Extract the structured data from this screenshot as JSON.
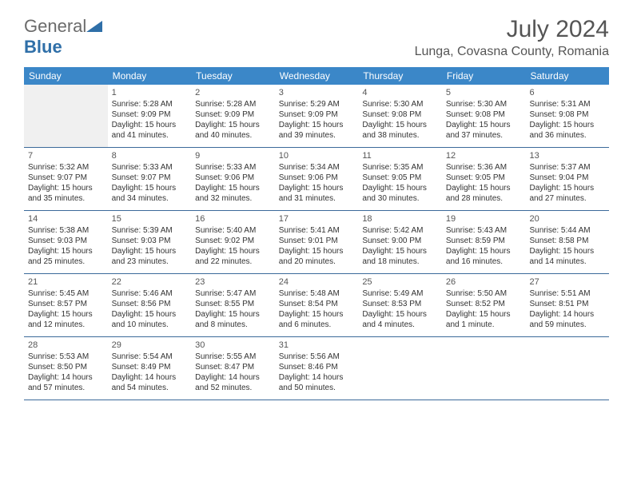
{
  "brand": {
    "name1": "General",
    "name2": "Blue"
  },
  "title": "July 2024",
  "location": "Lunga, Covasna County, Romania",
  "header_bg": "#3b87c8",
  "header_text_color": "#ffffff",
  "border_color": "#3b6a9a",
  "day_headers": [
    "Sunday",
    "Monday",
    "Tuesday",
    "Wednesday",
    "Thursday",
    "Friday",
    "Saturday"
  ],
  "weeks": [
    [
      {
        "n": "",
        "lead": true
      },
      {
        "n": "1",
        "sr": "5:28 AM",
        "ss": "9:09 PM",
        "dl": "15 hours and 41 minutes."
      },
      {
        "n": "2",
        "sr": "5:28 AM",
        "ss": "9:09 PM",
        "dl": "15 hours and 40 minutes."
      },
      {
        "n": "3",
        "sr": "5:29 AM",
        "ss": "9:09 PM",
        "dl": "15 hours and 39 minutes."
      },
      {
        "n": "4",
        "sr": "5:30 AM",
        "ss": "9:08 PM",
        "dl": "15 hours and 38 minutes."
      },
      {
        "n": "5",
        "sr": "5:30 AM",
        "ss": "9:08 PM",
        "dl": "15 hours and 37 minutes."
      },
      {
        "n": "6",
        "sr": "5:31 AM",
        "ss": "9:08 PM",
        "dl": "15 hours and 36 minutes."
      }
    ],
    [
      {
        "n": "7",
        "sr": "5:32 AM",
        "ss": "9:07 PM",
        "dl": "15 hours and 35 minutes."
      },
      {
        "n": "8",
        "sr": "5:33 AM",
        "ss": "9:07 PM",
        "dl": "15 hours and 34 minutes."
      },
      {
        "n": "9",
        "sr": "5:33 AM",
        "ss": "9:06 PM",
        "dl": "15 hours and 32 minutes."
      },
      {
        "n": "10",
        "sr": "5:34 AM",
        "ss": "9:06 PM",
        "dl": "15 hours and 31 minutes."
      },
      {
        "n": "11",
        "sr": "5:35 AM",
        "ss": "9:05 PM",
        "dl": "15 hours and 30 minutes."
      },
      {
        "n": "12",
        "sr": "5:36 AM",
        "ss": "9:05 PM",
        "dl": "15 hours and 28 minutes."
      },
      {
        "n": "13",
        "sr": "5:37 AM",
        "ss": "9:04 PM",
        "dl": "15 hours and 27 minutes."
      }
    ],
    [
      {
        "n": "14",
        "sr": "5:38 AM",
        "ss": "9:03 PM",
        "dl": "15 hours and 25 minutes."
      },
      {
        "n": "15",
        "sr": "5:39 AM",
        "ss": "9:03 PM",
        "dl": "15 hours and 23 minutes."
      },
      {
        "n": "16",
        "sr": "5:40 AM",
        "ss": "9:02 PM",
        "dl": "15 hours and 22 minutes."
      },
      {
        "n": "17",
        "sr": "5:41 AM",
        "ss": "9:01 PM",
        "dl": "15 hours and 20 minutes."
      },
      {
        "n": "18",
        "sr": "5:42 AM",
        "ss": "9:00 PM",
        "dl": "15 hours and 18 minutes."
      },
      {
        "n": "19",
        "sr": "5:43 AM",
        "ss": "8:59 PM",
        "dl": "15 hours and 16 minutes."
      },
      {
        "n": "20",
        "sr": "5:44 AM",
        "ss": "8:58 PM",
        "dl": "15 hours and 14 minutes."
      }
    ],
    [
      {
        "n": "21",
        "sr": "5:45 AM",
        "ss": "8:57 PM",
        "dl": "15 hours and 12 minutes."
      },
      {
        "n": "22",
        "sr": "5:46 AM",
        "ss": "8:56 PM",
        "dl": "15 hours and 10 minutes."
      },
      {
        "n": "23",
        "sr": "5:47 AM",
        "ss": "8:55 PM",
        "dl": "15 hours and 8 minutes."
      },
      {
        "n": "24",
        "sr": "5:48 AM",
        "ss": "8:54 PM",
        "dl": "15 hours and 6 minutes."
      },
      {
        "n": "25",
        "sr": "5:49 AM",
        "ss": "8:53 PM",
        "dl": "15 hours and 4 minutes."
      },
      {
        "n": "26",
        "sr": "5:50 AM",
        "ss": "8:52 PM",
        "dl": "15 hours and 1 minute."
      },
      {
        "n": "27",
        "sr": "5:51 AM",
        "ss": "8:51 PM",
        "dl": "14 hours and 59 minutes."
      }
    ],
    [
      {
        "n": "28",
        "sr": "5:53 AM",
        "ss": "8:50 PM",
        "dl": "14 hours and 57 minutes."
      },
      {
        "n": "29",
        "sr": "5:54 AM",
        "ss": "8:49 PM",
        "dl": "14 hours and 54 minutes."
      },
      {
        "n": "30",
        "sr": "5:55 AM",
        "ss": "8:47 PM",
        "dl": "14 hours and 52 minutes."
      },
      {
        "n": "31",
        "sr": "5:56 AM",
        "ss": "8:46 PM",
        "dl": "14 hours and 50 minutes."
      },
      {
        "n": ""
      },
      {
        "n": ""
      },
      {
        "n": ""
      }
    ]
  ],
  "labels": {
    "sunrise": "Sunrise: ",
    "sunset": "Sunset: ",
    "daylight": "Daylight: "
  }
}
